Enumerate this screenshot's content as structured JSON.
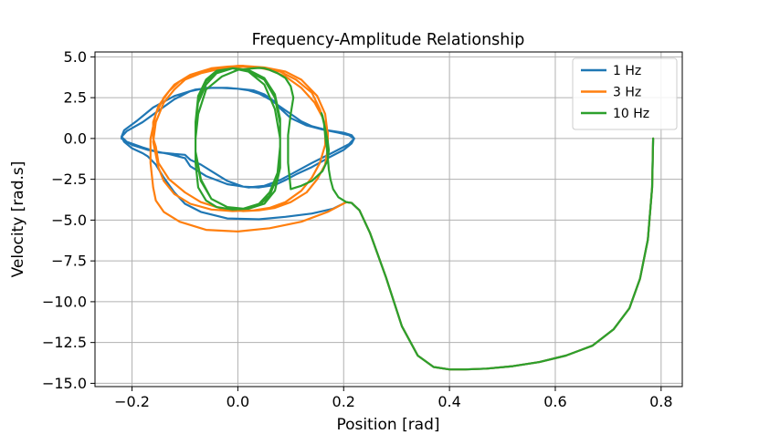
{
  "chart_data": {
    "type": "line",
    "title": "Frequency-Amplitude Relationship",
    "xlabel": "Position [rad]",
    "ylabel": "Velocity [rad.s]",
    "xlim": [
      -0.27,
      0.84
    ],
    "ylim": [
      -15.2,
      5.3
    ],
    "xticks": [
      -0.2,
      0.0,
      0.2,
      0.4,
      0.6,
      0.8
    ],
    "xtick_labels": [
      "−0.2",
      "0.0",
      "0.2",
      "0.4",
      "0.6",
      "0.8"
    ],
    "yticks": [
      5.0,
      2.5,
      0.0,
      -2.5,
      -5.0,
      -7.5,
      -10.0,
      -12.5,
      -15.0
    ],
    "ytick_labels": [
      "5.0",
      "2.5",
      "0.0",
      "−2.5",
      "−5.0",
      "−7.5",
      "−10.0",
      "−12.5",
      "−15.0"
    ],
    "grid": true,
    "legend_position": "top-right",
    "series": [
      {
        "name": "1 Hz",
        "color": "#1f77b4",
        "x": [
          0.785,
          0.783,
          0.775,
          0.76,
          0.74,
          0.71,
          0.67,
          0.62,
          0.57,
          0.52,
          0.47,
          0.43,
          0.4,
          0.37,
          0.34,
          0.31,
          0.28,
          0.25,
          0.23,
          0.215,
          0.205,
          0.18,
          0.14,
          0.09,
          0.04,
          -0.02,
          -0.07,
          -0.1,
          -0.12,
          -0.14,
          -0.155,
          -0.17,
          -0.18,
          -0.2,
          -0.215,
          -0.22,
          -0.215,
          -0.19,
          -0.16,
          -0.12,
          -0.08,
          -0.05,
          -0.02,
          0.0,
          0.02,
          0.04,
          0.06,
          0.08,
          0.1,
          0.12,
          0.14,
          0.17,
          0.2,
          0.215,
          0.22,
          0.215,
          0.2,
          0.17,
          0.14,
          0.11,
          0.09,
          0.07,
          0.04,
          0.01,
          -0.02,
          -0.05,
          -0.07,
          -0.09,
          -0.1,
          -0.12,
          -0.15,
          -0.18,
          -0.21,
          -0.22,
          -0.21,
          -0.18,
          -0.15,
          -0.12,
          -0.09,
          -0.06,
          -0.03,
          0.0,
          0.03,
          0.05,
          0.07,
          0.08,
          0.1,
          0.13,
          0.16,
          0.19,
          0.21,
          0.22,
          0.21,
          0.18,
          0.14,
          0.1,
          0.08,
          0.05,
          0.02,
          -0.02,
          -0.06,
          -0.09,
          -0.1,
          -0.13,
          -0.17,
          -0.2,
          -0.22
        ],
        "y": [
          0.0,
          -3.0,
          -6.2,
          -8.6,
          -10.4,
          -11.7,
          -12.7,
          -13.3,
          -13.7,
          -13.95,
          -14.1,
          -14.15,
          -14.15,
          -14.0,
          -13.3,
          -11.5,
          -8.5,
          -5.8,
          -4.4,
          -3.95,
          -3.9,
          -4.3,
          -4.6,
          -4.8,
          -4.95,
          -4.9,
          -4.5,
          -4.0,
          -3.3,
          -2.4,
          -1.6,
          -1.1,
          -0.9,
          -0.6,
          -0.2,
          0.1,
          0.5,
          1.1,
          1.9,
          2.6,
          3.0,
          3.1,
          3.1,
          3.05,
          2.95,
          2.75,
          2.4,
          1.95,
          1.5,
          1.05,
          0.75,
          0.5,
          0.35,
          0.2,
          0.0,
          -0.3,
          -0.7,
          -1.2,
          -1.75,
          -2.2,
          -2.55,
          -2.85,
          -3.0,
          -2.95,
          -2.6,
          -2.0,
          -1.6,
          -1.3,
          -1.0,
          -0.95,
          -0.85,
          -0.55,
          -0.2,
          0.1,
          0.45,
          1.0,
          1.7,
          2.4,
          2.9,
          3.1,
          3.1,
          3.05,
          2.95,
          2.7,
          2.25,
          1.85,
          1.25,
          0.8,
          0.55,
          0.35,
          0.2,
          0.0,
          -0.35,
          -0.85,
          -1.5,
          -2.2,
          -2.55,
          -2.9,
          -3.0,
          -2.8,
          -2.3,
          -1.7,
          -1.2,
          -0.95,
          -0.7,
          -0.4,
          0.0
        ]
      },
      {
        "name": "3 Hz",
        "color": "#ff7f0e",
        "x": [
          0.785,
          0.783,
          0.775,
          0.76,
          0.74,
          0.71,
          0.67,
          0.62,
          0.57,
          0.52,
          0.47,
          0.43,
          0.4,
          0.37,
          0.34,
          0.31,
          0.28,
          0.25,
          0.23,
          0.215,
          0.205,
          0.17,
          0.12,
          0.06,
          0.0,
          -0.06,
          -0.11,
          -0.14,
          -0.155,
          -0.16,
          -0.165,
          -0.165,
          -0.155,
          -0.14,
          -0.12,
          -0.09,
          -0.06,
          -0.03,
          0.0,
          0.03,
          0.06,
          0.09,
          0.12,
          0.145,
          0.16,
          0.17,
          0.17,
          0.165,
          0.15,
          0.13,
          0.1,
          0.07,
          0.04,
          0.01,
          -0.03,
          -0.07,
          -0.1,
          -0.13,
          -0.15,
          -0.155,
          -0.16,
          -0.16,
          -0.15,
          -0.13,
          -0.11,
          -0.08,
          -0.05,
          -0.02,
          0.01,
          0.05,
          0.08,
          0.11,
          0.14,
          0.155,
          0.165,
          0.165,
          0.155,
          0.14,
          0.12,
          0.09,
          0.06,
          0.03,
          -0.01,
          -0.05,
          -0.09,
          -0.12,
          -0.14,
          -0.15,
          -0.16,
          -0.155,
          -0.14,
          -0.12,
          -0.1,
          -0.07,
          -0.03,
          0.01,
          0.05,
          0.09,
          0.12,
          0.15,
          0.165,
          0.17
        ],
        "y": [
          0.0,
          -3.0,
          -6.2,
          -8.6,
          -10.4,
          -11.7,
          -12.7,
          -13.3,
          -13.7,
          -13.95,
          -14.1,
          -14.15,
          -14.15,
          -14.0,
          -13.3,
          -11.5,
          -8.5,
          -5.8,
          -4.4,
          -3.95,
          -3.9,
          -4.5,
          -5.1,
          -5.5,
          -5.7,
          -5.6,
          -5.1,
          -4.5,
          -3.8,
          -3.0,
          -1.5,
          0.0,
          1.5,
          2.5,
          3.3,
          3.9,
          4.2,
          4.35,
          4.45,
          4.4,
          4.2,
          3.8,
          3.1,
          2.2,
          1.3,
          0.4,
          -0.6,
          -1.6,
          -2.5,
          -3.3,
          -3.9,
          -4.25,
          -4.4,
          -4.45,
          -4.3,
          -3.9,
          -3.3,
          -2.5,
          -1.5,
          -0.5,
          0.0,
          1.0,
          2.0,
          2.9,
          3.5,
          4.0,
          4.3,
          4.4,
          4.45,
          4.35,
          4.1,
          3.6,
          2.8,
          1.8,
          0.8,
          -0.4,
          -1.5,
          -2.4,
          -3.2,
          -3.9,
          -4.25,
          -4.4,
          -4.45,
          -4.35,
          -4.0,
          -3.4,
          -2.6,
          -1.8,
          -0.2,
          1.0,
          2.2,
          3.0,
          3.6,
          4.0,
          4.3,
          4.4,
          4.35,
          4.1,
          3.6,
          2.6,
          1.5,
          0.2
        ]
      },
      {
        "name": "10 Hz",
        "color": "#2ca02c",
        "x": [
          0.785,
          0.783,
          0.775,
          0.76,
          0.74,
          0.71,
          0.67,
          0.62,
          0.57,
          0.52,
          0.47,
          0.43,
          0.4,
          0.37,
          0.34,
          0.31,
          0.28,
          0.25,
          0.23,
          0.215,
          0.205,
          0.19,
          0.18,
          0.175,
          0.172,
          0.17,
          0.168,
          0.165,
          0.163,
          0.16,
          0.158,
          0.16,
          0.165,
          0.17,
          0.172,
          0.17,
          0.16,
          0.14,
          0.12,
          0.11,
          0.1,
          0.095,
          0.095,
          0.1,
          0.105,
          0.1,
          0.09,
          0.075,
          0.06,
          0.05,
          0.04,
          0.03,
          0.0,
          -0.03,
          -0.06,
          -0.075,
          -0.08,
          -0.08,
          -0.075,
          -0.06,
          -0.04,
          -0.01,
          0.02,
          0.05,
          0.07,
          0.08,
          0.08,
          0.07,
          0.05,
          0.02,
          -0.01,
          -0.04,
          -0.06,
          -0.075,
          -0.08,
          -0.08,
          -0.07,
          -0.05,
          -0.02,
          0.01,
          0.04,
          0.06,
          0.075,
          0.08,
          0.08,
          0.07,
          0.05,
          0.02,
          -0.01,
          -0.04,
          -0.06,
          -0.075,
          -0.08,
          -0.08,
          -0.07,
          -0.05,
          -0.02,
          0.01,
          0.04,
          0.06,
          0.075,
          0.08,
          0.08,
          0.07,
          0.05,
          0.02,
          -0.01,
          -0.04,
          -0.06,
          -0.075
        ],
        "y": [
          0.0,
          -3.0,
          -6.2,
          -8.6,
          -10.4,
          -11.7,
          -12.7,
          -13.3,
          -13.7,
          -13.95,
          -14.1,
          -14.15,
          -14.15,
          -14.0,
          -13.3,
          -11.5,
          -8.5,
          -5.8,
          -4.4,
          -3.95,
          -3.9,
          -3.6,
          -3.1,
          -2.5,
          -1.9,
          -1.2,
          -0.5,
          0.2,
          0.9,
          1.4,
          1.55,
          1.3,
          0.6,
          -0.2,
          -0.7,
          -1.3,
          -2.0,
          -2.6,
          -2.9,
          -3.0,
          -3.1,
          -1.5,
          0.2,
          1.5,
          2.5,
          3.2,
          3.7,
          4.0,
          4.2,
          4.3,
          4.32,
          4.3,
          4.2,
          3.8,
          3.0,
          1.5,
          0.0,
          -1.5,
          -3.0,
          -3.8,
          -4.2,
          -4.35,
          -4.3,
          -4.0,
          -3.2,
          -1.8,
          0.0,
          1.8,
          3.3,
          4.1,
          4.3,
          4.15,
          3.6,
          2.6,
          1.0,
          -0.8,
          -2.5,
          -3.7,
          -4.2,
          -4.3,
          -4.1,
          -3.5,
          -2.3,
          -0.8,
          0.9,
          2.5,
          3.6,
          4.1,
          4.3,
          4.1,
          3.5,
          2.3,
          0.7,
          -1.0,
          -2.6,
          -3.7,
          -4.2,
          -4.3,
          -4.0,
          -3.3,
          -2.1,
          -0.5,
          1.2,
          2.7,
          3.7,
          4.2,
          4.3,
          4.0,
          3.3,
          2.2
        ]
      }
    ]
  }
}
